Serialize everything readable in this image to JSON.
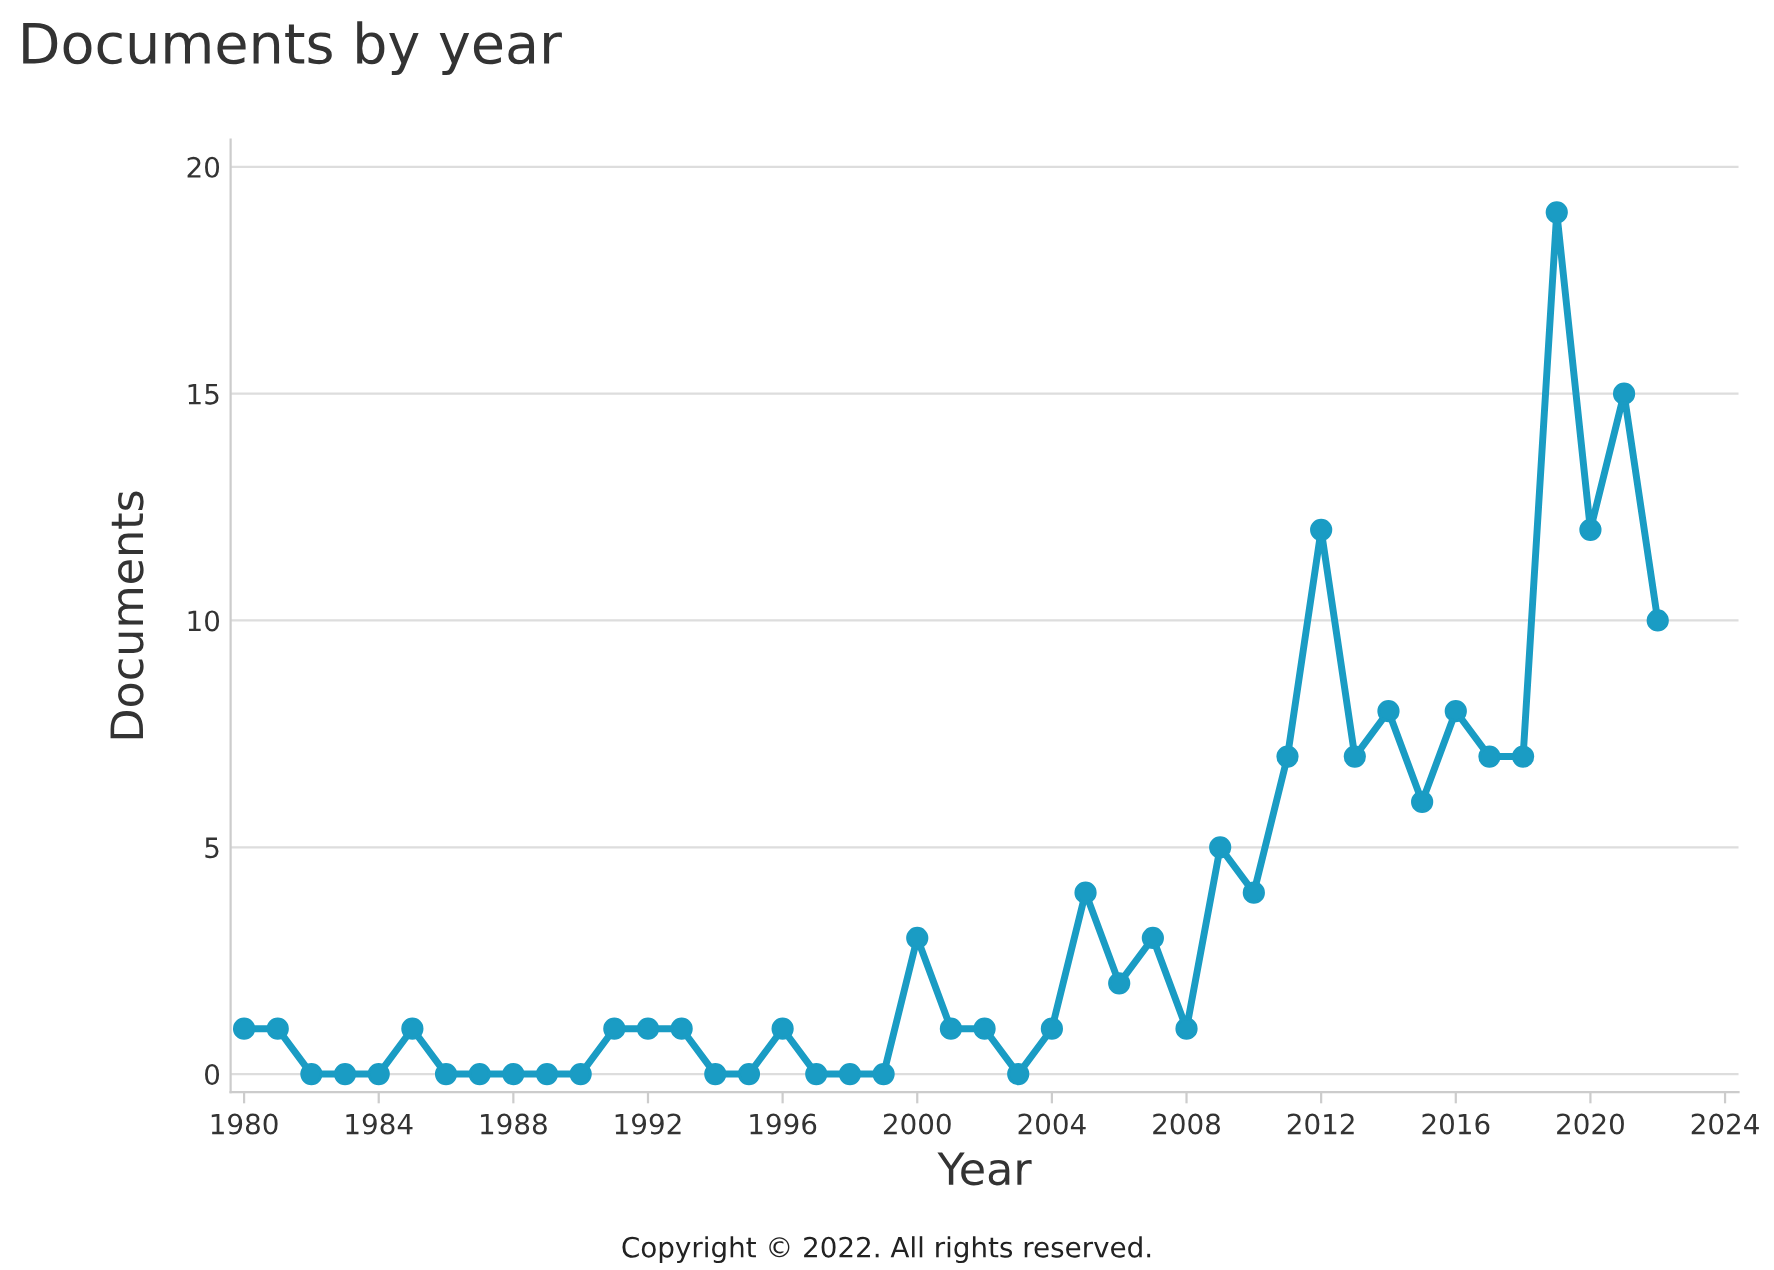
{
  "chart_data": {
    "type": "line",
    "title": "Documents by year",
    "xlabel": "Year",
    "ylabel": "Documents",
    "x": [
      1980,
      1981,
      1982,
      1983,
      1984,
      1985,
      1986,
      1987,
      1988,
      1989,
      1990,
      1991,
      1992,
      1993,
      1994,
      1995,
      1996,
      1997,
      1998,
      1999,
      2000,
      2001,
      2002,
      2003,
      2004,
      2005,
      2006,
      2007,
      2008,
      2009,
      2010,
      2011,
      2012,
      2013,
      2014,
      2015,
      2016,
      2017,
      2018,
      2019,
      2020,
      2021,
      2022
    ],
    "series": [
      {
        "color": "#1a9cc4",
        "values": [
          1,
          1,
          0,
          0,
          0,
          1,
          0,
          0,
          0,
          0,
          0,
          1,
          1,
          1,
          0,
          0,
          1,
          0,
          0,
          0,
          3,
          1,
          1,
          0,
          1,
          4,
          2,
          3,
          1,
          5,
          4,
          7,
          12,
          7,
          8,
          6,
          8,
          7,
          7,
          19,
          12,
          15,
          10
        ]
      }
    ],
    "xlim": [
      1979.6,
      2024.4
    ],
    "xticks": [
      1980,
      1984,
      1988,
      1992,
      1996,
      2000,
      2004,
      2008,
      2012,
      2016,
      2020,
      2024
    ],
    "ylim": [
      -0.4,
      20.6
    ],
    "yticks": [
      0,
      5,
      10,
      15,
      20
    ],
    "grid": "y",
    "marker": "circle",
    "line_style": "solid",
    "legend": false,
    "annotations": [
      "Copyright © 2022. All rights reserved."
    ]
  }
}
